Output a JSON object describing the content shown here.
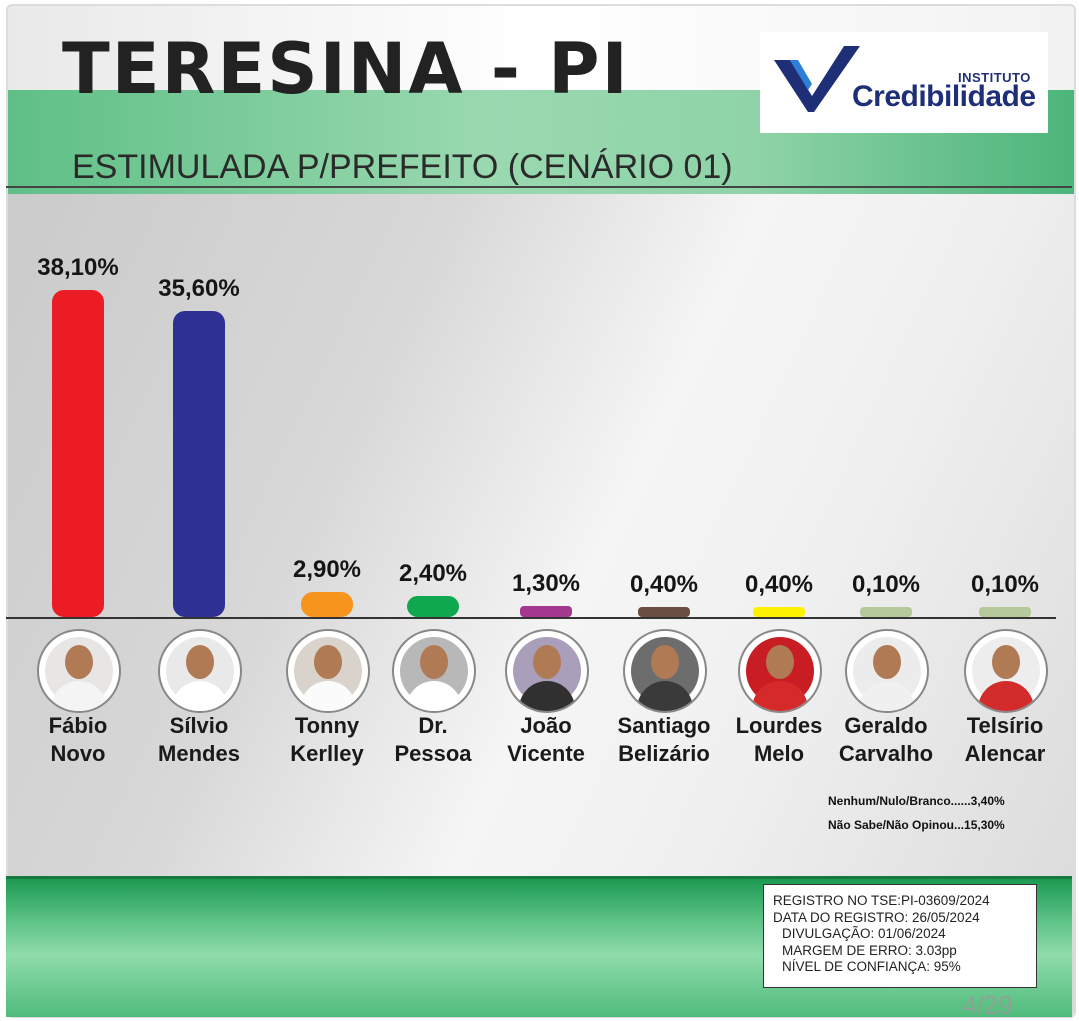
{
  "header": {
    "title": "TERESINA - PI",
    "subtitle": "ESTIMULADA P/PREFEITO (CENÁRIO 01)"
  },
  "logo": {
    "small_text": "INSTITUTO",
    "big_text": "Credibilidade",
    "check_color": "#1e2f78",
    "check_accent": "#2b7fd6"
  },
  "chart_data": {
    "type": "bar",
    "title": "ESTIMULADA P/PREFEITO (CENÁRIO 01)",
    "categories": [
      "Fábio Novo",
      "Sílvio Mendes",
      "Tonny Kerlley",
      "Dr. Pessoa",
      "João Vicente",
      "Santiago Belizário",
      "Lourdes Melo",
      "Geraldo Carvalho",
      "Telsírio Alencar"
    ],
    "values": [
      38.1,
      35.6,
      2.9,
      2.4,
      1.3,
      0.4,
      0.4,
      0.1,
      0.1
    ],
    "value_labels": [
      "38,10%",
      "35,60%",
      "2,90%",
      "2,40%",
      "1,30%",
      "0,40%",
      "0,40%",
      "0,10%",
      "0,10%"
    ],
    "colors": [
      "#ec1c24",
      "#2e3192",
      "#f7941d",
      "#10a84e",
      "#a3398f",
      "#6b4f45",
      "#fff200",
      "#b5c99a",
      "#b5c99a"
    ],
    "ylim": [
      0,
      38.1
    ],
    "grid": false,
    "legend": "none"
  },
  "candidates": [
    {
      "first": "Fábio",
      "last": "Novo",
      "shirt": "#f4f4f4",
      "bg": "#e8e6e4"
    },
    {
      "first": "Sílvio",
      "last": "Mendes",
      "shirt": "#ffffff",
      "bg": "#e9e9e9"
    },
    {
      "first": "Tonny",
      "last": "Kerlley",
      "shirt": "#fbfbfb",
      "bg": "#d9d3cc"
    },
    {
      "first": "Dr.",
      "last": "Pessoa",
      "shirt": "#ffffff",
      "bg": "#b8b8b8"
    },
    {
      "first": "João",
      "last": "Vicente",
      "shirt": "#303030",
      "bg": "#a99fba"
    },
    {
      "first": "Santiago",
      "last": "Belizário",
      "shirt": "#3a3a3a",
      "bg": "#6d6d6d"
    },
    {
      "first": "Lourdes",
      "last": "Melo",
      "shirt": "#d52a2a",
      "bg": "#c91d24"
    },
    {
      "first": "Geraldo",
      "last": "Carvalho",
      "shirt": "#f0f0f0",
      "bg": "#ececec"
    },
    {
      "first": "Telsírio",
      "last": "Alencar",
      "shirt": "#d12b2b",
      "bg": "#ededed"
    }
  ],
  "others": {
    "nenhum": "Nenhum/Nulo/Branco......3,40%",
    "nao_sabe": "Não Sabe/Não Opinou...15,30%"
  },
  "registration": {
    "line1": "REGISTRO NO TSE:PI-03609/2024",
    "line2": "DATA DO REGISTRO: 26/05/2024",
    "line3": "DIVULGAÇÃO: 01/06/2024",
    "line4": "MARGEM DE ERRO: 3.03pp",
    "line5": "NÍVEL DE CONFIANÇA: 95%"
  },
  "page_number": "4/29"
}
